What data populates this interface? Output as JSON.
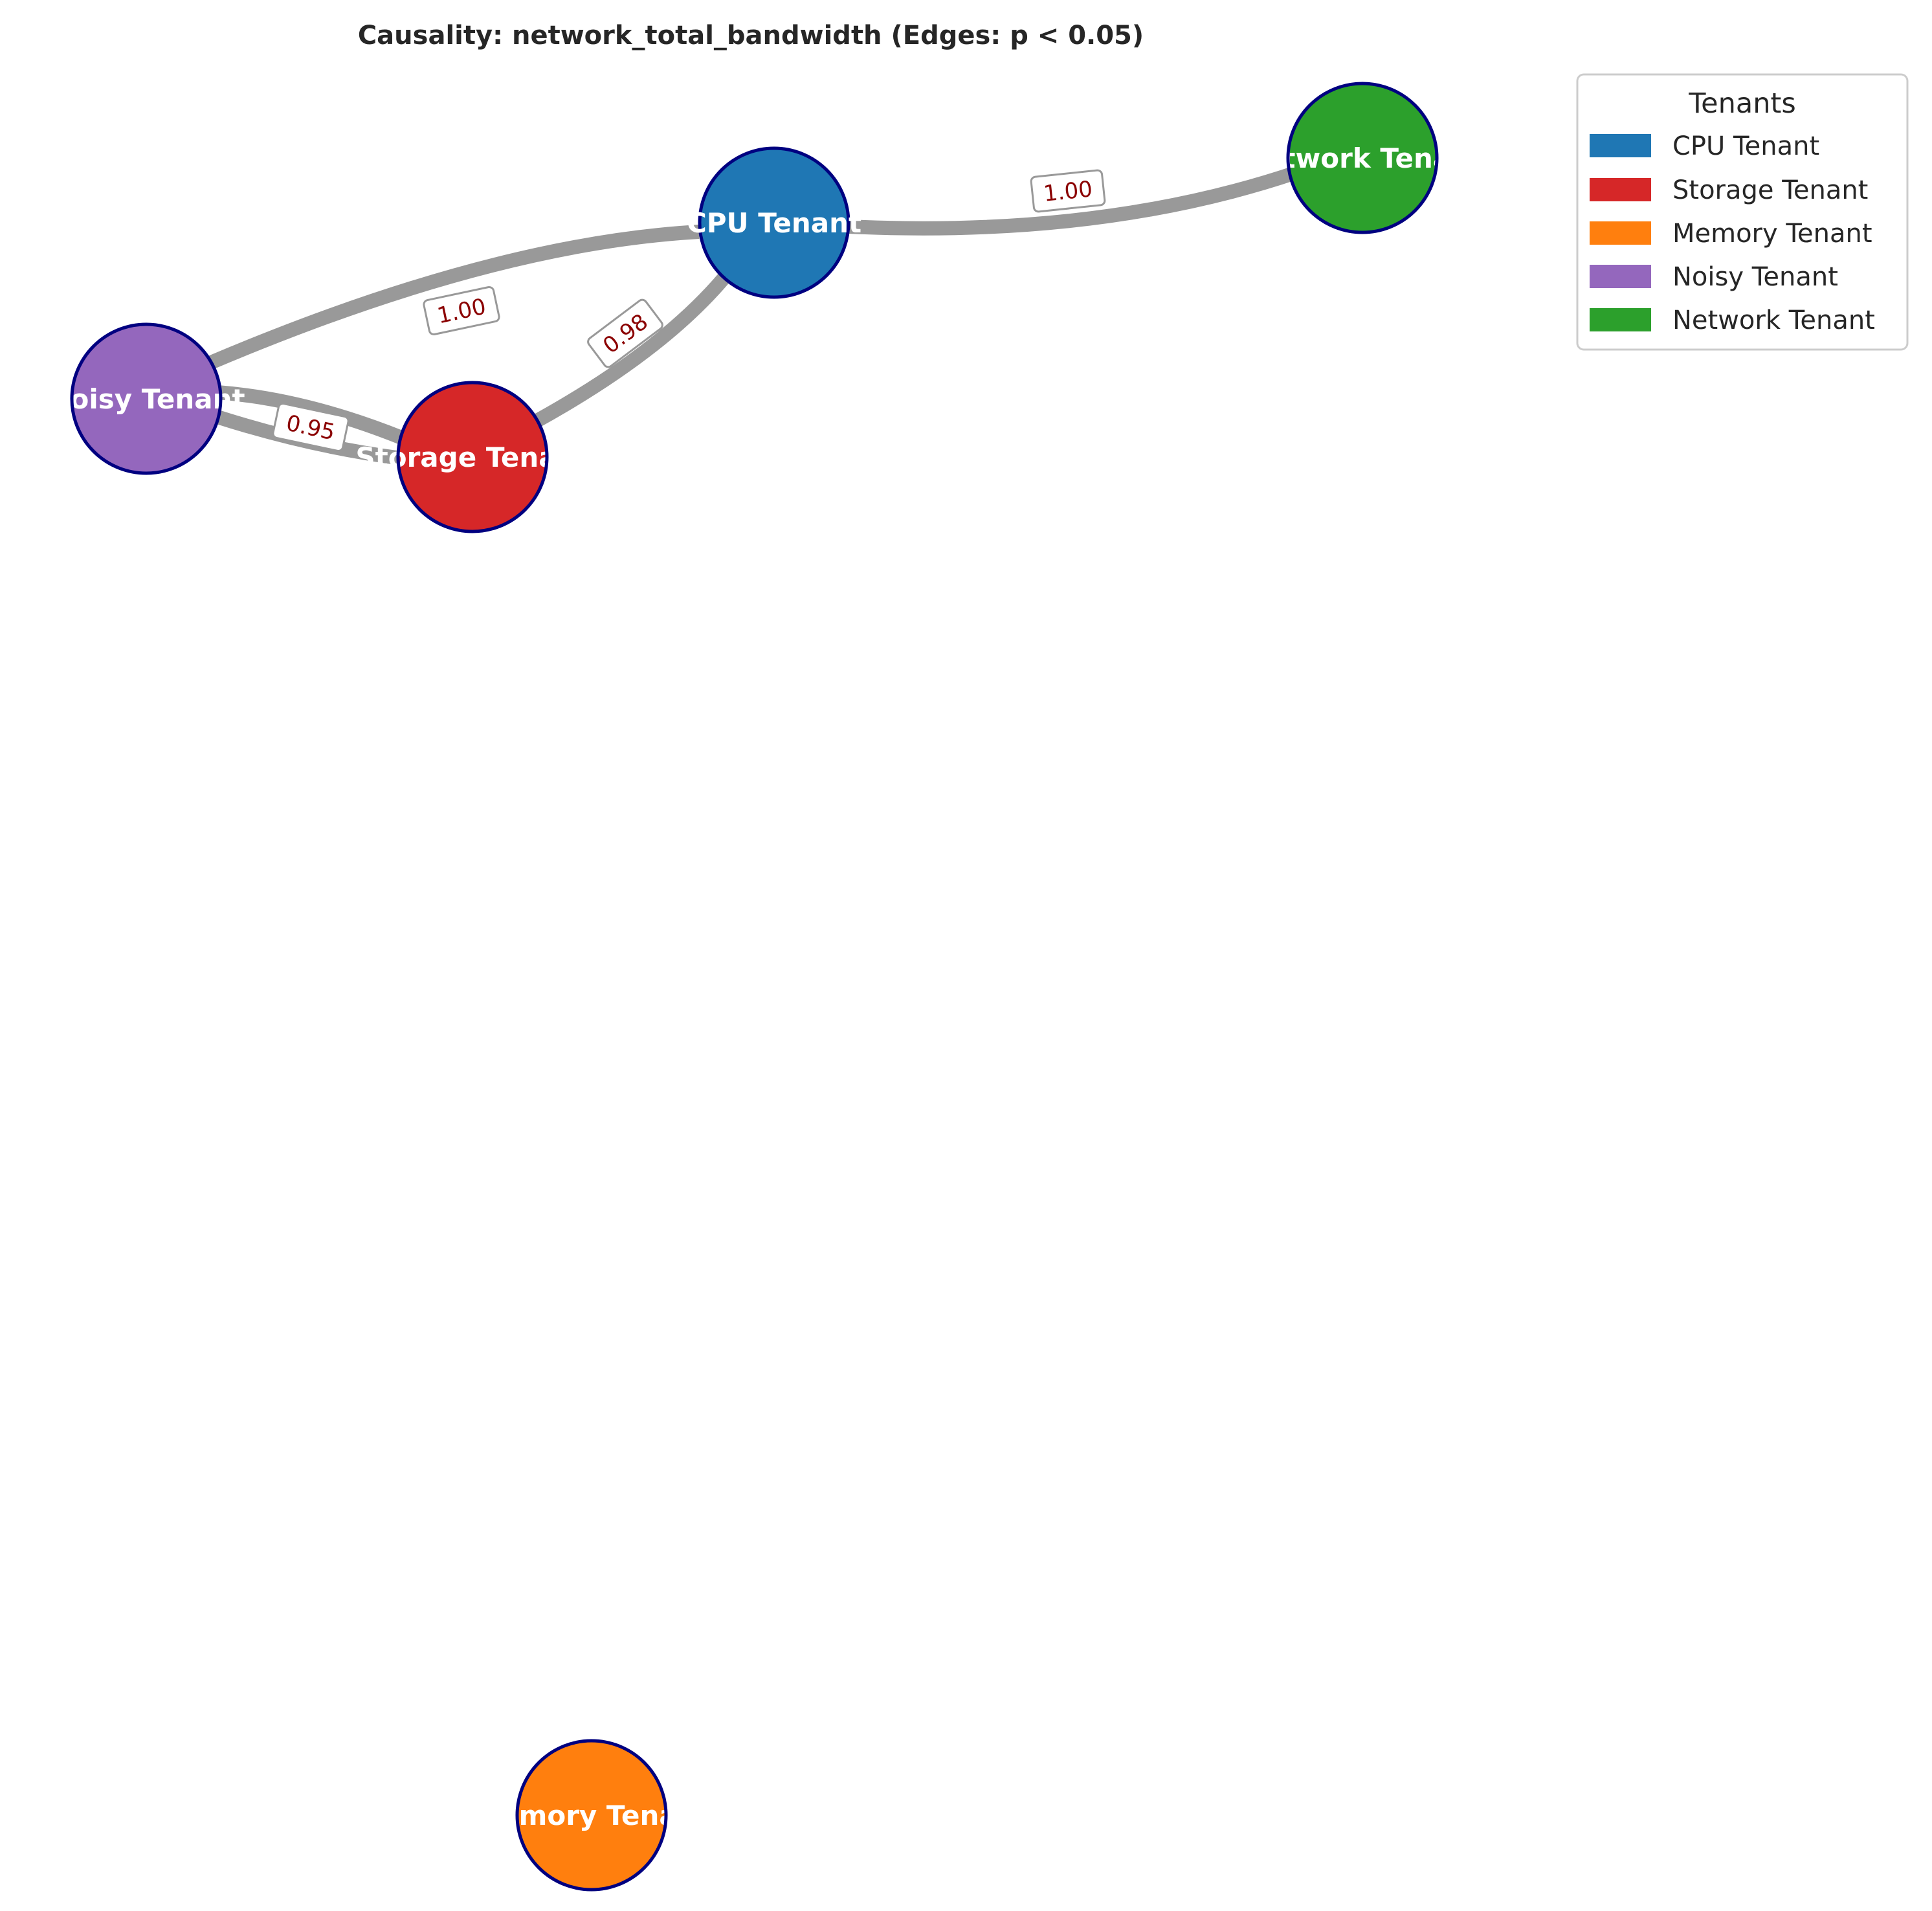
{
  "title": "Causality: network_total_bandwidth (Edges: p < 0.05)",
  "nodes": [
    {
      "id": "cpu",
      "label": "CPU Tenant",
      "color": "#1f77b4"
    },
    {
      "id": "network",
      "label": "Network Tenant",
      "color": "#2ca02c"
    },
    {
      "id": "noisy",
      "label": "Noisy Tenant",
      "color": "#9467bd"
    },
    {
      "id": "storage",
      "label": "Storage Tenant",
      "color": "#d62728"
    },
    {
      "id": "memory",
      "label": "Memory Tenant",
      "color": "#ff7f0e"
    }
  ],
  "node_border_color": "#000080",
  "edge_color": "#999999",
  "edges": [
    {
      "source": "cpu",
      "target": "network",
      "label": "1.00"
    },
    {
      "source": "noisy",
      "target": "cpu",
      "label": "1.00"
    },
    {
      "source": "storage",
      "target": "cpu",
      "label": "0.98"
    },
    {
      "source": "noisy",
      "target": "storage",
      "label": "0.95"
    },
    {
      "source": "storage",
      "target": "noisy",
      "label": ""
    }
  ],
  "legend": {
    "title": "Tenants",
    "items": [
      {
        "label": "CPU Tenant",
        "color": "#1f77b4"
      },
      {
        "label": "Storage Tenant",
        "color": "#d62728"
      },
      {
        "label": "Memory Tenant",
        "color": "#ff7f0e"
      },
      {
        "label": "Noisy Tenant",
        "color": "#9467bd"
      },
      {
        "label": "Network Tenant",
        "color": "#2ca02c"
      }
    ]
  }
}
